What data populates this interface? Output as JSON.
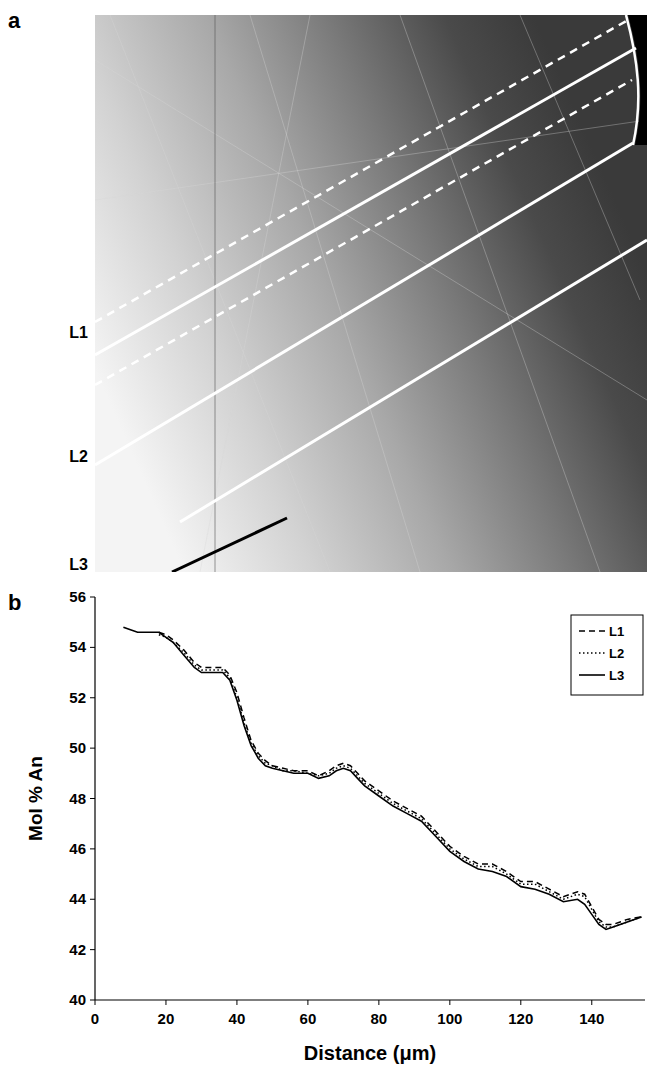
{
  "image_panel": {
    "letter": "a",
    "line_labels": [
      "L1",
      "L2",
      "L3"
    ]
  },
  "chart_data": {
    "type": "line",
    "panel_label": "b",
    "x_label": "Distance (μm)",
    "y_label": "Mol % An",
    "x": [
      8,
      10,
      12,
      15,
      18,
      20,
      22,
      25,
      28,
      30,
      33,
      36,
      38,
      40,
      42,
      44,
      46,
      48,
      50,
      53,
      56,
      60,
      63,
      66,
      68,
      70,
      72,
      74,
      76,
      80,
      84,
      88,
      92,
      96,
      100,
      104,
      108,
      112,
      116,
      120,
      124,
      128,
      132,
      136,
      138,
      140,
      142,
      144,
      146,
      148,
      150,
      154
    ],
    "series": [
      {
        "name": "L1",
        "color": "#000000",
        "line_style": "dashed",
        "values": [
          null,
          null,
          null,
          null,
          54.6,
          54.5,
          54.3,
          53.9,
          53.4,
          53.2,
          53.2,
          53.2,
          52.9,
          52.2,
          51.2,
          50.3,
          49.8,
          49.5,
          49.3,
          49.2,
          49.1,
          49.1,
          48.9,
          49.1,
          49.3,
          49.4,
          49.3,
          49.0,
          48.7,
          48.3,
          47.9,
          47.6,
          47.3,
          46.7,
          46.1,
          45.7,
          45.4,
          45.4,
          45.1,
          44.7,
          44.7,
          44.4,
          44.1,
          44.3,
          44.2,
          43.7,
          43.2,
          43.0,
          43.0,
          43.1,
          43.2,
          43.3
        ]
      },
      {
        "name": "L2",
        "color": "#000000",
        "line_style": "dotted",
        "values": [
          null,
          null,
          null,
          null,
          54.5,
          54.4,
          54.2,
          53.8,
          53.3,
          53.1,
          53.1,
          53.1,
          52.8,
          52.0,
          51.0,
          50.2,
          49.7,
          49.4,
          49.3,
          49.1,
          49.1,
          49.0,
          48.9,
          49.0,
          49.2,
          49.3,
          49.2,
          48.9,
          48.6,
          48.2,
          47.8,
          47.5,
          47.2,
          46.6,
          46.0,
          45.6,
          45.3,
          45.3,
          45.0,
          44.6,
          44.6,
          44.3,
          44.0,
          44.2,
          44.1,
          43.6,
          43.1,
          42.9,
          42.9,
          43.0,
          43.1,
          43.3
        ]
      },
      {
        "name": "L3",
        "color": "#000000",
        "line_style": "solid",
        "values": [
          54.8,
          54.7,
          54.6,
          54.6,
          54.6,
          54.4,
          54.2,
          53.7,
          53.2,
          53.0,
          53.0,
          53.0,
          52.7,
          51.9,
          50.9,
          50.1,
          49.6,
          49.3,
          49.2,
          49.1,
          49.0,
          49.0,
          48.8,
          48.9,
          49.1,
          49.2,
          49.1,
          48.8,
          48.5,
          48.1,
          47.7,
          47.4,
          47.1,
          46.5,
          45.9,
          45.5,
          45.2,
          45.1,
          44.9,
          44.5,
          44.4,
          44.2,
          43.9,
          44.0,
          43.8,
          43.4,
          43.0,
          42.8,
          42.9,
          43.0,
          43.1,
          43.3
        ]
      }
    ],
    "xlim": [
      0,
      155
    ],
    "xticks": [
      0,
      20,
      40,
      60,
      80,
      100,
      120,
      140
    ],
    "ylim": [
      40,
      56
    ],
    "yticks": [
      40,
      42,
      44,
      46,
      48,
      50,
      52,
      54,
      56
    ],
    "legend": "upper right",
    "grid": false
  }
}
